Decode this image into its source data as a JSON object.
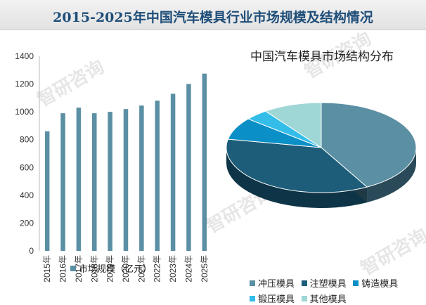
{
  "header": {
    "title": "2015-2025年中国汽车模具行业市场规模及结构情况"
  },
  "watermark": {
    "text": "智研咨询"
  },
  "colors": {
    "bar": "#5b8fa3",
    "stamping": "#5b8fa3",
    "plastic": "#1d5d7a",
    "casting": "#0a8fc6",
    "forging": "#33bde8",
    "other": "#9fd7d6"
  },
  "chart_data": [
    {
      "type": "bar",
      "title": "",
      "categories": [
        "2015年",
        "2016年",
        "2017年",
        "2018年",
        "2019年",
        "2020年",
        "2021年",
        "2022年",
        "2023年",
        "2024年",
        "2025年"
      ],
      "series": [
        {
          "name": "市场规模（亿元）",
          "values": [
            860,
            990,
            1030,
            990,
            1000,
            1020,
            1045,
            1080,
            1130,
            1200,
            1275
          ]
        }
      ],
      "ylim": [
        0,
        1400
      ],
      "yticks": [
        0,
        200,
        400,
        600,
        800,
        1000,
        1200,
        1400
      ],
      "ylabel": "",
      "xlabel": "",
      "legend": "bottom"
    },
    {
      "type": "pie",
      "title": "中国汽车模具市场结构分布",
      "labels": [
        "冲压模具",
        "注塑模具",
        "铸造模具",
        "锻压模具",
        "其他模具"
      ],
      "values": [
        42,
        36,
        8,
        4,
        10
      ],
      "unit": "%",
      "legend": "bottom"
    }
  ],
  "legend_labels": {
    "bar": "市场规模（亿元）",
    "pie": [
      "冲压模具",
      "注塑模具",
      "铸造模具",
      "锻压模具",
      "其他模具"
    ]
  }
}
